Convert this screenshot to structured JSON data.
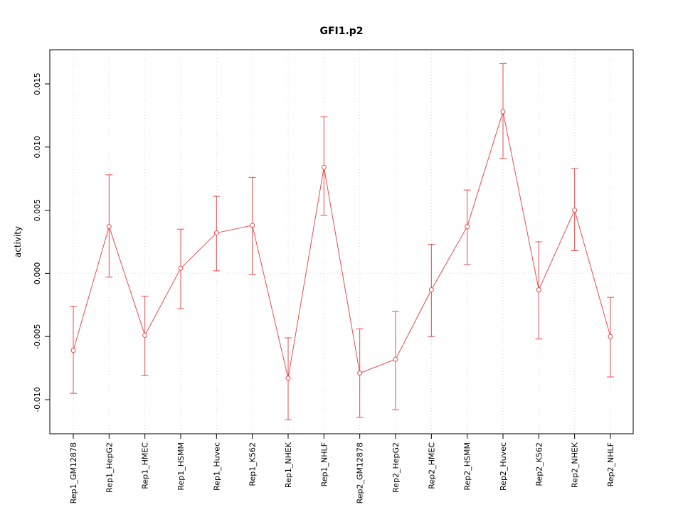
{
  "chart_data": {
    "type": "line",
    "title": "GFI1.p2",
    "ylabel": "activity",
    "xlabel": "",
    "ylim": [
      -0.0127,
      0.0177
    ],
    "yticks": [
      -0.01,
      -0.005,
      0.0,
      0.005,
      0.01,
      0.015
    ],
    "ytick_labels": [
      "-0.010",
      "-0.005",
      "0.000",
      "0.005",
      "0.010",
      "0.015"
    ],
    "grid": true,
    "legend_position": "none",
    "colors": {
      "series": "#e84b4b",
      "grid": "#d9d9d9",
      "zero_line": "#d9d9d9",
      "box": "#000000"
    },
    "categories": [
      "Rep1_GM12878",
      "Rep1_HepG2",
      "Rep1_HMEC",
      "Rep1_HSMM",
      "Rep1_Huvec",
      "Rep1_K562",
      "Rep1_NHEK",
      "Rep1_NHLF",
      "Rep2_GM12878",
      "Rep2_HepG2",
      "Rep2_HMEC",
      "Rep2_HSMM",
      "Rep2_Huvec",
      "Rep2_K562",
      "Rep2_NHEK",
      "Rep2_NHLF"
    ],
    "series": [
      {
        "name": "activity",
        "values": [
          -0.0061,
          0.0037,
          -0.0049,
          0.0004,
          0.0032,
          0.0038,
          -0.0083,
          0.0084,
          -0.0079,
          -0.0068,
          -0.0013,
          0.0037,
          0.0128,
          -0.0013,
          0.005,
          -0.005
        ],
        "ci_low": [
          -0.0095,
          -0.0003,
          -0.0081,
          -0.0028,
          0.0002,
          -0.0001,
          -0.0116,
          0.0046,
          -0.0114,
          -0.0108,
          -0.005,
          0.0007,
          0.0091,
          -0.0052,
          0.0018,
          -0.0082
        ],
        "ci_high": [
          -0.0026,
          0.0078,
          -0.0018,
          0.0035,
          0.0061,
          0.0076,
          -0.0051,
          0.0124,
          -0.0044,
          -0.003,
          0.0023,
          0.0066,
          0.0166,
          0.0025,
          0.0083,
          -0.0019
        ]
      }
    ]
  }
}
